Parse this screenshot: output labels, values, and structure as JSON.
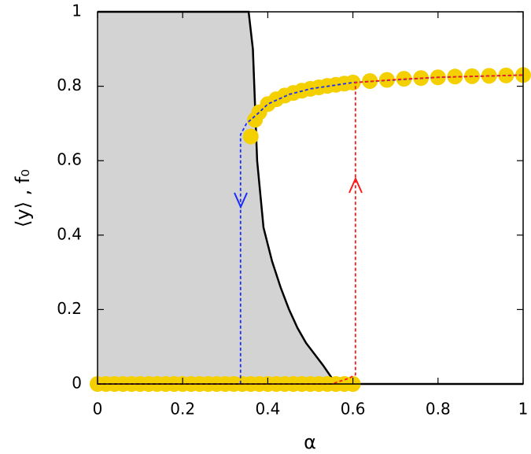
{
  "chart_data": {
    "type": "line",
    "xlabel": "α",
    "ylabel": "⟨y⟩ , f₀",
    "xlim": [
      0,
      1
    ],
    "ylim": [
      0,
      1
    ],
    "xticks": [
      0,
      0.2,
      0.4,
      0.6,
      0.8,
      1
    ],
    "yticks": [
      0,
      0.2,
      0.4,
      0.6,
      0.8,
      1
    ],
    "series": [
      {
        "style": "line",
        "color": "#000000",
        "fill": "#d3d3d3",
        "x": [
          0,
          0.355,
          0.365,
          0.37,
          0.375,
          0.39,
          0.41,
          0.43,
          0.45,
          0.47,
          0.49,
          0.51,
          0.53,
          0.56,
          1
        ],
        "values": [
          1,
          1,
          0.9,
          0.75,
          0.6,
          0.42,
          0.33,
          0.26,
          0.2,
          0.15,
          0.11,
          0.08,
          0.05,
          0,
          0
        ]
      },
      {
        "style": "markers",
        "color": "#f5d000",
        "x": [
          0,
          0.02,
          0.04,
          0.06,
          0.08,
          0.1,
          0.12,
          0.14,
          0.16,
          0.18,
          0.2,
          0.22,
          0.24,
          0.26,
          0.28,
          0.3,
          0.32,
          0.34,
          0.36,
          0.38,
          0.4,
          0.42,
          0.44,
          0.46,
          0.48,
          0.5,
          0.52,
          0.54,
          0.56,
          0.58,
          0.6
        ],
        "values": [
          0,
          0,
          0,
          0,
          0,
          0,
          0,
          0,
          0,
          0,
          0,
          0,
          0,
          0,
          0,
          0,
          0,
          0,
          0,
          0,
          0,
          0,
          0,
          0,
          0,
          0,
          0,
          0,
          0,
          0,
          0
        ]
      },
      {
        "style": "markers",
        "color": "#f5d000",
        "x": [
          0.36,
          0.37,
          0.38,
          0.4,
          0.42,
          0.44,
          0.46,
          0.48,
          0.5,
          0.52,
          0.54,
          0.56,
          0.58,
          0.6,
          0.64,
          0.68,
          0.72,
          0.76,
          0.8,
          0.84,
          0.88,
          0.92,
          0.96,
          1
        ],
        "values": [
          0.665,
          0.71,
          0.73,
          0.752,
          0.765,
          0.775,
          0.782,
          0.788,
          0.793,
          0.797,
          0.801,
          0.804,
          0.807,
          0.81,
          0.814,
          0.817,
          0.82,
          0.822,
          0.824,
          0.826,
          0.827,
          0.828,
          0.829,
          0.83
        ]
      },
      {
        "style": "dashed",
        "color": "#1a2bff",
        "x": [
          0,
          0.336,
          0.336,
          0.35,
          0.38,
          0.4,
          0.45,
          0.5,
          0.6,
          0.8,
          1
        ],
        "values": [
          0,
          0,
          0.67,
          0.7,
          0.73,
          0.752,
          0.778,
          0.793,
          0.81,
          0.824,
          0.83
        ]
      },
      {
        "style": "dashed",
        "color": "#ff1a1a",
        "x": [
          0,
          0.55,
          0.59,
          0.606,
          0.606,
          0.7,
          0.8,
          1
        ],
        "values": [
          0,
          0,
          0.015,
          0.025,
          0.81,
          0.818,
          0.824,
          0.83
        ]
      }
    ]
  }
}
